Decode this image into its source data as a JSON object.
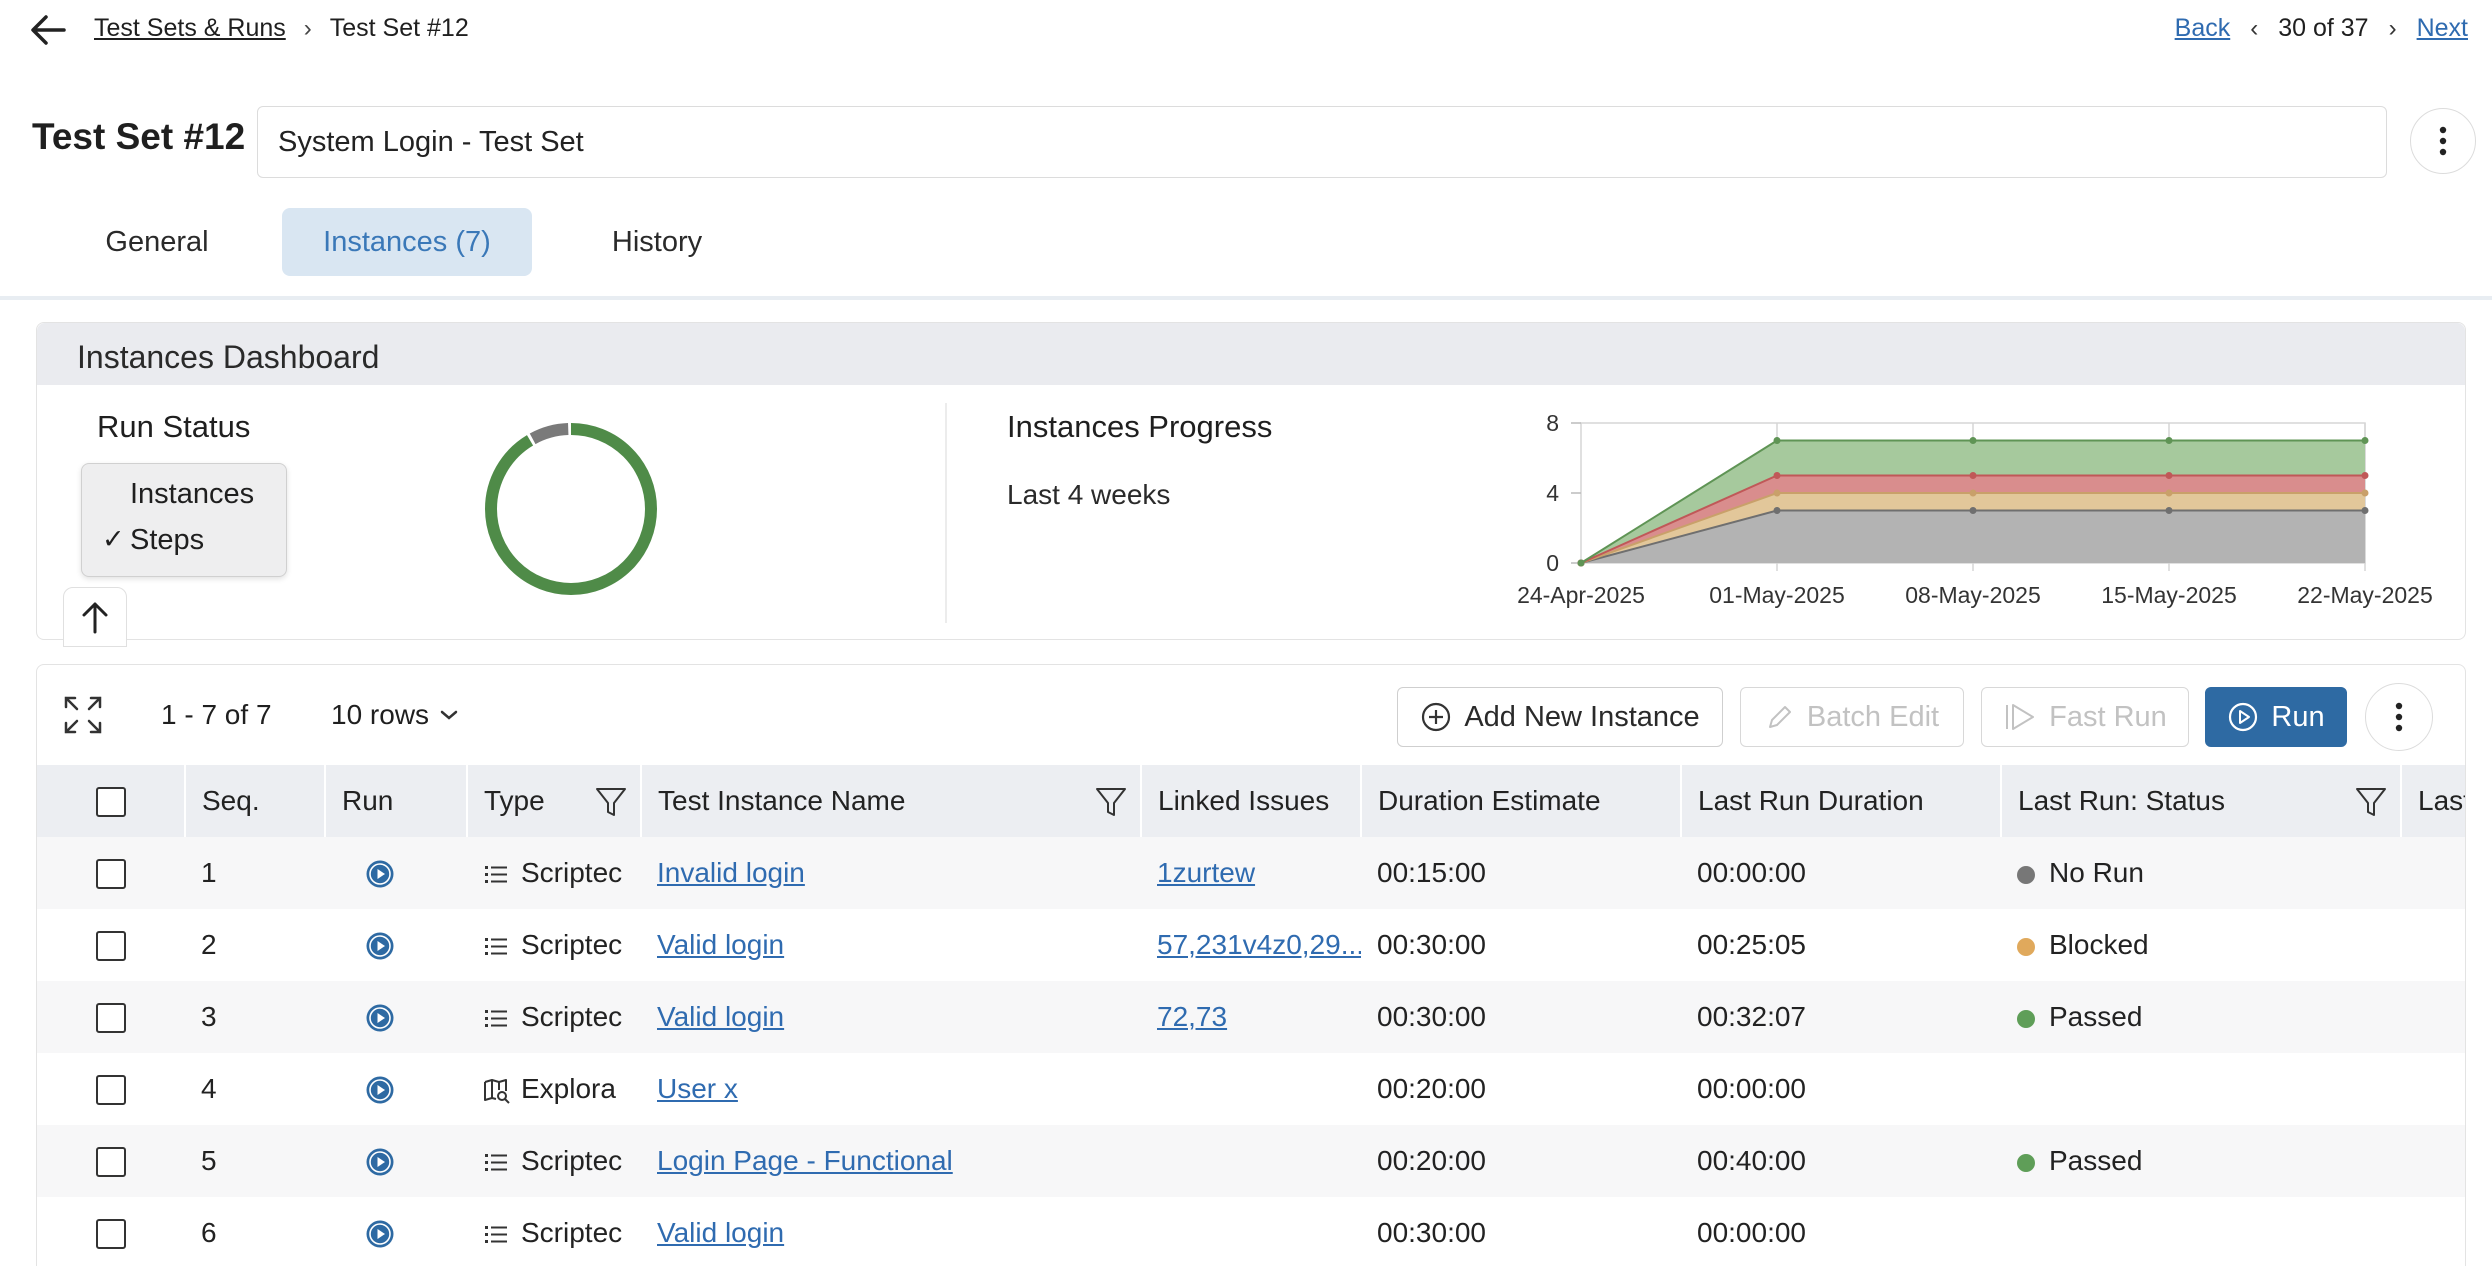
{
  "breadcrumb": {
    "parent": "Test Sets & Runs",
    "current": "Test Set #12"
  },
  "pager": {
    "back": "Back",
    "position": "30 of 37",
    "next": "Next"
  },
  "header": {
    "title": "Test Set #12",
    "name_value": "System Login - Test Set"
  },
  "tabs": [
    {
      "label": "General",
      "active": false
    },
    {
      "label": "Instances (7)",
      "active": true
    },
    {
      "label": "History",
      "active": false
    }
  ],
  "dashboard": {
    "title": "Instances Dashboard",
    "run_status": {
      "title": "Run Status",
      "menu": [
        "Instances",
        "Steps"
      ],
      "selected": "Steps",
      "check": "✓",
      "donut": [
        {
          "status": "Passed",
          "fraction": 0.92,
          "color": "#4f8b48"
        },
        {
          "status": "No Run",
          "fraction": 0.08,
          "color": "#7a7a7a"
        }
      ]
    },
    "progress": {
      "title": "Instances Progress",
      "subtitle": "Last 4 weeks"
    }
  },
  "chart_data": {
    "type": "area",
    "x": [
      "24-Apr-2025",
      "01-May-2025",
      "08-May-2025",
      "15-May-2025",
      "22-May-2025"
    ],
    "yticks": [
      "0",
      "4",
      "8"
    ],
    "ylim": [
      0,
      8
    ],
    "stacked": true,
    "series": [
      {
        "values": [
          0,
          3,
          3,
          3,
          3
        ],
        "color": "#b3b3b3",
        "line": "#6f6f6f"
      },
      {
        "values": [
          0,
          1,
          1,
          1,
          1
        ],
        "color": "#e2c79a",
        "line": "#c9a06a"
      },
      {
        "values": [
          0,
          1,
          1,
          1,
          1
        ],
        "color": "#d98d8d",
        "line": "#c05858"
      },
      {
        "values": [
          0,
          2,
          2,
          2,
          2
        ],
        "color": "#a6c99d",
        "line": "#5f9455"
      }
    ]
  },
  "grid": {
    "range": "1 - 7 of 7",
    "rows": "10 rows",
    "buttons": {
      "add": "Add New Instance",
      "batch": "Batch Edit",
      "fast": "Fast Run",
      "run": "Run"
    },
    "columns": [
      "Seq.",
      "Run",
      "Type",
      "Test Instance Name",
      "Linked Issues",
      "Duration Estimate",
      "Last Run Duration",
      "Last Run: Status",
      "Last R"
    ],
    "rows_data": [
      {
        "seq": "1",
        "type": "Scriptec",
        "type_icon": "list",
        "name": "Invalid login",
        "issues": "1zurtew",
        "est": "00:15:00",
        "dur": "00:00:00",
        "status": "No Run",
        "status_color": "#777777"
      },
      {
        "seq": "2",
        "type": "Scriptec",
        "type_icon": "list",
        "name": "Valid login",
        "issues": "57,231v4z0,29...",
        "est": "00:30:00",
        "dur": "00:25:05",
        "status": "Blocked",
        "status_color": "#e0a95c"
      },
      {
        "seq": "3",
        "type": "Scriptec",
        "type_icon": "list",
        "name": "Valid login",
        "issues": "72,73",
        "est": "00:30:00",
        "dur": "00:32:07",
        "status": "Passed",
        "status_color": "#5f9e58"
      },
      {
        "seq": "4",
        "type": "Explora",
        "type_icon": "map",
        "name": "User x",
        "issues": "",
        "est": "00:20:00",
        "dur": "00:00:00",
        "status": "",
        "status_color": ""
      },
      {
        "seq": "5",
        "type": "Scriptec",
        "type_icon": "list",
        "name": "Login Page - Functional",
        "issues": "",
        "est": "00:20:00",
        "dur": "00:40:00",
        "status": "Passed",
        "status_color": "#5f9e58"
      },
      {
        "seq": "6",
        "type": "Scriptec",
        "type_icon": "list",
        "name": "Valid login",
        "issues": "",
        "est": "00:30:00",
        "dur": "00:00:00",
        "status": "",
        "status_color": ""
      }
    ]
  }
}
